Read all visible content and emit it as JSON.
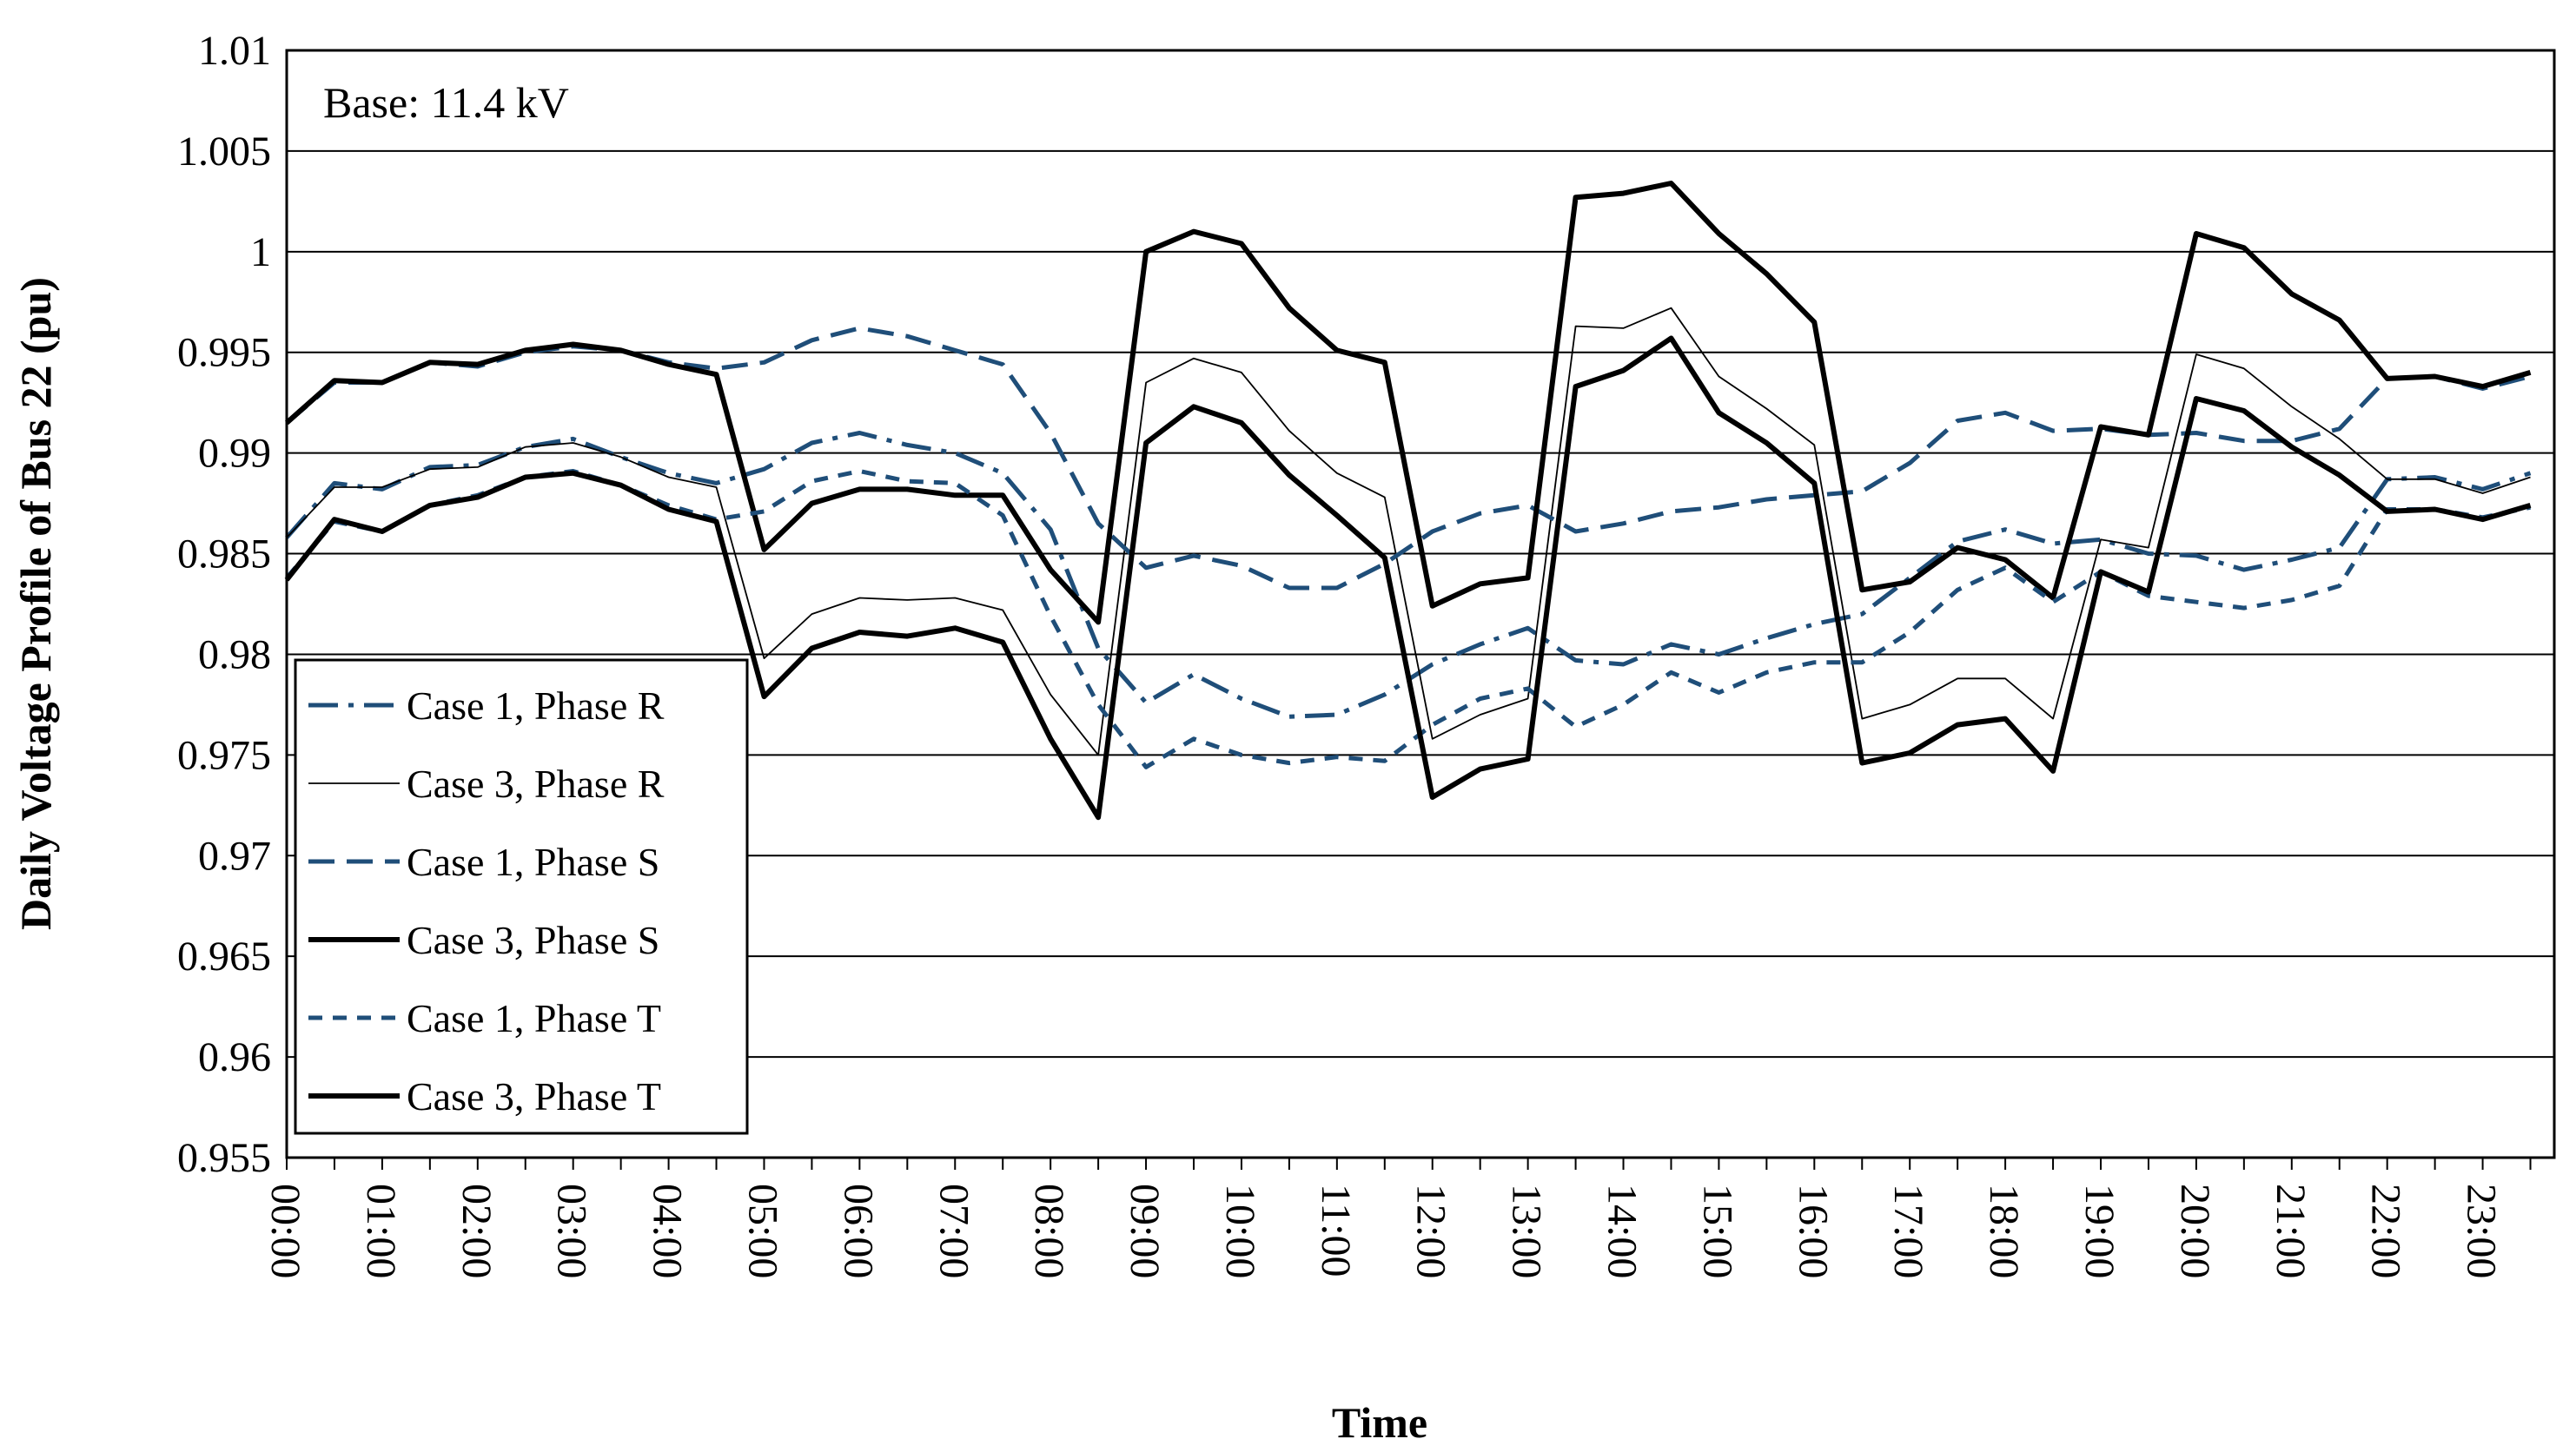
{
  "chart_data": {
    "type": "line",
    "title": "",
    "annotation": "Base: 11.4 kV",
    "xlabel": "Time",
    "ylabel": "Daily Voltage Profile of Bus 22 (pu)",
    "ylim": [
      0.955,
      1.01
    ],
    "y_ticks": [
      "0.955",
      "0.96",
      "0.965",
      "0.97",
      "0.975",
      "0.98",
      "0.985",
      "0.99",
      "0.995",
      "1",
      "1.005",
      "1.01"
    ],
    "x_tick_labels": [
      "00:00",
      "01:00",
      "02:00",
      "03:00",
      "04:00",
      "05:00",
      "06:00",
      "07:00",
      "08:00",
      "09:00",
      "10:00",
      "11:00",
      "12:00",
      "13:00",
      "14:00",
      "15:00",
      "16:00",
      "17:00",
      "18:00",
      "19:00",
      "20:00",
      "21:00",
      "22:00",
      "23:00"
    ],
    "x_hours": [
      0,
      0.5,
      1,
      1.5,
      2,
      2.5,
      3,
      3.5,
      4,
      4.5,
      5,
      5.5,
      6,
      6.5,
      7,
      7.5,
      8,
      8.5,
      9,
      9.5,
      10,
      10.5,
      11,
      11.5,
      12,
      12.5,
      13,
      13.5,
      14,
      14.5,
      15,
      15.5,
      16,
      16.5,
      17,
      17.5,
      18,
      18.5,
      19,
      19.5,
      20,
      20.5,
      21,
      21.5,
      22,
      22.5,
      23,
      23.5
    ],
    "series": [
      {
        "name": "Case 1, Phase R",
        "color": "#1f4e79",
        "style": "dashdot",
        "width": "medium",
        "values": [
          0.9858,
          0.9885,
          0.9882,
          0.9893,
          0.9894,
          0.9903,
          0.9907,
          0.9898,
          0.989,
          0.9885,
          0.9892,
          0.9905,
          0.991,
          0.9904,
          0.99,
          0.989,
          0.9862,
          0.9803,
          0.9776,
          0.979,
          0.9778,
          0.9769,
          0.977,
          0.978,
          0.9795,
          0.9805,
          0.9813,
          0.9797,
          0.9795,
          0.9805,
          0.98,
          0.9808,
          0.9815,
          0.982,
          0.9838,
          0.9856,
          0.9862,
          0.9855,
          0.9857,
          0.985,
          0.9849,
          0.9842,
          0.9847,
          0.9853,
          0.9887,
          0.9888,
          0.9882,
          0.989
        ]
      },
      {
        "name": "Case 3, Phase R",
        "color": "#000000",
        "style": "solid",
        "width": "thin",
        "values": [
          0.9858,
          0.9883,
          0.9883,
          0.9892,
          0.9893,
          0.9903,
          0.9905,
          0.9898,
          0.9888,
          0.9883,
          0.9798,
          0.982,
          0.9828,
          0.9827,
          0.9828,
          0.9822,
          0.978,
          0.975,
          0.9935,
          0.9947,
          0.994,
          0.9911,
          0.989,
          0.9878,
          0.9758,
          0.977,
          0.9778,
          0.9963,
          0.9962,
          0.9972,
          0.9938,
          0.9922,
          0.9904,
          0.9768,
          0.9775,
          0.9788,
          0.9788,
          0.9768,
          0.9857,
          0.9853,
          0.9949,
          0.9942,
          0.9923,
          0.9907,
          0.9887,
          0.9887,
          0.988,
          0.9888
        ]
      },
      {
        "name": "Case 1, Phase S",
        "color": "#1f4e79",
        "style": "dashed",
        "width": "medium",
        "values": [
          0.9915,
          0.9935,
          0.9935,
          0.9945,
          0.9943,
          0.995,
          0.9953,
          0.9951,
          0.9945,
          0.9942,
          0.9945,
          0.9956,
          0.9962,
          0.9958,
          0.9951,
          0.9944,
          0.991,
          0.9865,
          0.9843,
          0.9849,
          0.9844,
          0.9833,
          0.9833,
          0.9845,
          0.9861,
          0.987,
          0.9874,
          0.9861,
          0.9865,
          0.9871,
          0.9873,
          0.9877,
          0.9879,
          0.9881,
          0.9895,
          0.9916,
          0.992,
          0.9911,
          0.9912,
          0.9909,
          0.991,
          0.9906,
          0.9906,
          0.9912,
          0.9937,
          0.9938,
          0.9932,
          0.9938
        ]
      },
      {
        "name": "Case 3, Phase S",
        "color": "#000000",
        "style": "solid",
        "width": "thick",
        "values": [
          0.9915,
          0.9936,
          0.9935,
          0.9945,
          0.9944,
          0.9951,
          0.9954,
          0.9951,
          0.9944,
          0.9939,
          0.9852,
          0.9875,
          0.9882,
          0.9882,
          0.9879,
          0.9879,
          0.9842,
          0.9816,
          1.0,
          1.001,
          1.0004,
          0.9972,
          0.9951,
          0.9945,
          0.9824,
          0.9835,
          0.9838,
          1.0027,
          1.0029,
          1.0034,
          1.0009,
          0.9989,
          0.9965,
          0.9832,
          0.9836,
          0.9853,
          0.9847,
          0.9828,
          0.9913,
          0.9909,
          1.0009,
          1.0002,
          0.9979,
          0.9966,
          0.9937,
          0.9938,
          0.9933,
          0.994
        ]
      },
      {
        "name": "Case 1, Phase T",
        "color": "#1f4e79",
        "style": "shortdash",
        "width": "medium",
        "values": [
          0.9838,
          0.9866,
          0.9861,
          0.9874,
          0.9879,
          0.9888,
          0.9891,
          0.9884,
          0.9874,
          0.9867,
          0.9871,
          0.9886,
          0.9891,
          0.9886,
          0.9885,
          0.9869,
          0.9819,
          0.9775,
          0.9744,
          0.9758,
          0.975,
          0.9746,
          0.9749,
          0.9747,
          0.9765,
          0.9778,
          0.9783,
          0.9764,
          0.9775,
          0.9791,
          0.9781,
          0.9791,
          0.9796,
          0.9796,
          0.9811,
          0.9832,
          0.9843,
          0.9826,
          0.9841,
          0.9829,
          0.9826,
          0.9823,
          0.9827,
          0.9834,
          0.9872,
          0.9872,
          0.9868,
          0.9873
        ]
      },
      {
        "name": "Case 3, Phase T",
        "color": "#000000",
        "style": "solid",
        "width": "thick",
        "values": [
          0.9837,
          0.9867,
          0.9861,
          0.9874,
          0.9878,
          0.9888,
          0.989,
          0.9884,
          0.9872,
          0.9866,
          0.9779,
          0.9803,
          0.9811,
          0.9809,
          0.9813,
          0.9806,
          0.9758,
          0.9719,
          0.9905,
          0.9923,
          0.9915,
          0.9889,
          0.9869,
          0.9848,
          0.9729,
          0.9743,
          0.9748,
          0.9933,
          0.9941,
          0.9957,
          0.992,
          0.9905,
          0.9885,
          0.9746,
          0.9751,
          0.9765,
          0.9768,
          0.9742,
          0.9841,
          0.9831,
          0.9927,
          0.9921,
          0.9903,
          0.9889,
          0.9871,
          0.9872,
          0.9867,
          0.9874
        ]
      }
    ],
    "legend_position": "left, lower-middle"
  }
}
